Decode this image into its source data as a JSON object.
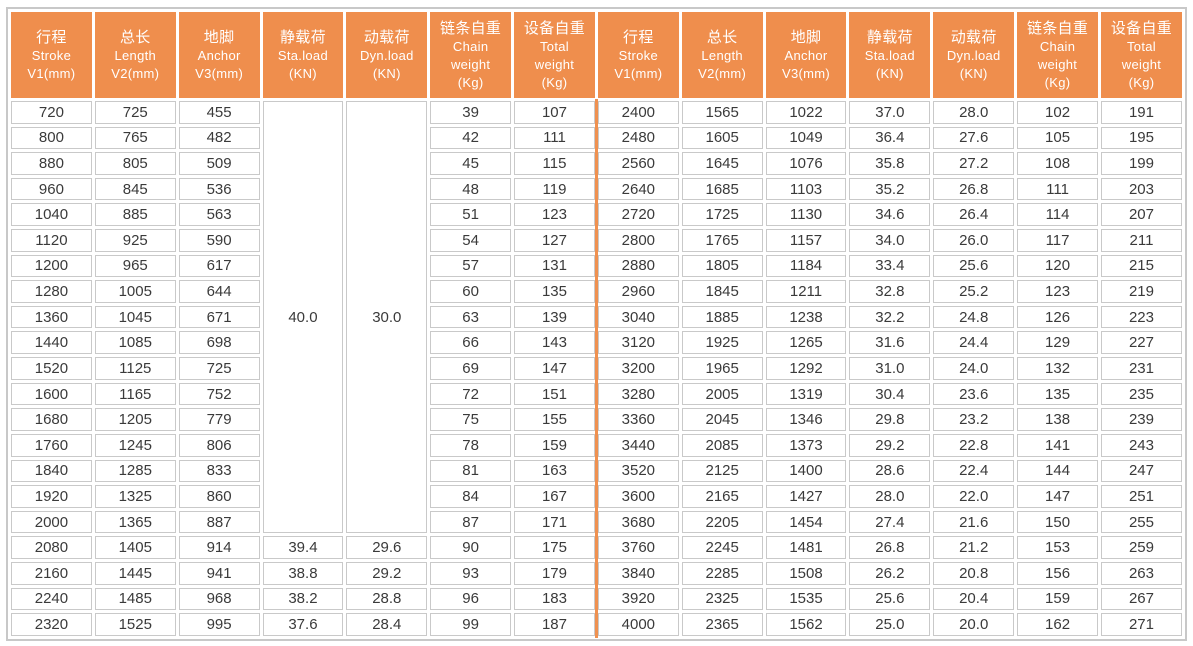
{
  "colors": {
    "header_bg": "#ef8e4d",
    "header_text": "#ffffff",
    "cell_border": "#c9c9c9",
    "outer_border": "#c8c8c8",
    "divider": "#ef9150",
    "cell_text": "#3a3a3a",
    "cell_bg": "#ffffff"
  },
  "table": {
    "columns": [
      {
        "lines": [
          "行程",
          "Stroke",
          "V1(mm)"
        ]
      },
      {
        "lines": [
          "总长",
          "Length",
          "V2(mm)"
        ]
      },
      {
        "lines": [
          "地脚",
          "Anchor",
          "V3(mm)"
        ]
      },
      {
        "lines": [
          "静载荷",
          "Sta.load",
          "(KN)"
        ]
      },
      {
        "lines": [
          "动载荷",
          "Dyn.load",
          "(KN)"
        ]
      },
      {
        "lines": [
          "链条自重",
          "Chain",
          "weight",
          "(Kg)"
        ]
      },
      {
        "lines": [
          "设备自重",
          "Total",
          "weight",
          "(Kg)"
        ]
      }
    ],
    "left_merged": {
      "sta_load": "40.0",
      "dyn_load": "30.0",
      "rows": 17
    },
    "left_rows": [
      [
        720,
        725,
        455,
        null,
        null,
        39,
        107
      ],
      [
        800,
        765,
        482,
        null,
        null,
        42,
        111
      ],
      [
        880,
        805,
        509,
        null,
        null,
        45,
        115
      ],
      [
        960,
        845,
        536,
        null,
        null,
        48,
        119
      ],
      [
        1040,
        885,
        563,
        null,
        null,
        51,
        123
      ],
      [
        1120,
        925,
        590,
        null,
        null,
        54,
        127
      ],
      [
        1200,
        965,
        617,
        null,
        null,
        57,
        131
      ],
      [
        1280,
        1005,
        644,
        null,
        null,
        60,
        135
      ],
      [
        1360,
        1045,
        671,
        null,
        null,
        63,
        139
      ],
      [
        1440,
        1085,
        698,
        null,
        null,
        66,
        143
      ],
      [
        1520,
        1125,
        725,
        null,
        null,
        69,
        147
      ],
      [
        1600,
        1165,
        752,
        null,
        null,
        72,
        151
      ],
      [
        1680,
        1205,
        779,
        null,
        null,
        75,
        155
      ],
      [
        1760,
        1245,
        806,
        null,
        null,
        78,
        159
      ],
      [
        1840,
        1285,
        833,
        null,
        null,
        81,
        163
      ],
      [
        1920,
        1325,
        860,
        null,
        null,
        84,
        167
      ],
      [
        2000,
        1365,
        887,
        null,
        null,
        87,
        171
      ],
      [
        2080,
        1405,
        914,
        "39.4",
        "29.6",
        90,
        175
      ],
      [
        2160,
        1445,
        941,
        "38.8",
        "29.2",
        93,
        179
      ],
      [
        2240,
        1485,
        968,
        "38.2",
        "28.8",
        96,
        183
      ],
      [
        2320,
        1525,
        995,
        "37.6",
        "28.4",
        99,
        187
      ]
    ],
    "right_rows": [
      [
        2400,
        1565,
        1022,
        "37.0",
        "28.0",
        102,
        191
      ],
      [
        2480,
        1605,
        1049,
        "36.4",
        "27.6",
        105,
        195
      ],
      [
        2560,
        1645,
        1076,
        "35.8",
        "27.2",
        108,
        199
      ],
      [
        2640,
        1685,
        1103,
        "35.2",
        "26.8",
        111,
        203
      ],
      [
        2720,
        1725,
        1130,
        "34.6",
        "26.4",
        114,
        207
      ],
      [
        2800,
        1765,
        1157,
        "34.0",
        "26.0",
        117,
        211
      ],
      [
        2880,
        1805,
        1184,
        "33.4",
        "25.6",
        120,
        215
      ],
      [
        2960,
        1845,
        1211,
        "32.8",
        "25.2",
        123,
        219
      ],
      [
        3040,
        1885,
        1238,
        "32.2",
        "24.8",
        126,
        223
      ],
      [
        3120,
        1925,
        1265,
        "31.6",
        "24.4",
        129,
        227
      ],
      [
        3200,
        1965,
        1292,
        "31.0",
        "24.0",
        132,
        231
      ],
      [
        3280,
        2005,
        1319,
        "30.4",
        "23.6",
        135,
        235
      ],
      [
        3360,
        2045,
        1346,
        "29.8",
        "23.2",
        138,
        239
      ],
      [
        3440,
        2085,
        1373,
        "29.2",
        "22.8",
        141,
        243
      ],
      [
        3520,
        2125,
        1400,
        "28.6",
        "22.4",
        144,
        247
      ],
      [
        3600,
        2165,
        1427,
        "28.0",
        "22.0",
        147,
        251
      ],
      [
        3680,
        2205,
        1454,
        "27.4",
        "21.6",
        150,
        255
      ],
      [
        3760,
        2245,
        1481,
        "26.8",
        "21.2",
        153,
        259
      ],
      [
        3840,
        2285,
        1508,
        "26.2",
        "20.8",
        156,
        263
      ],
      [
        3920,
        2325,
        1535,
        "25.6",
        "20.4",
        159,
        267
      ],
      [
        4000,
        2365,
        1562,
        "25.0",
        "20.0",
        162,
        271
      ]
    ]
  }
}
